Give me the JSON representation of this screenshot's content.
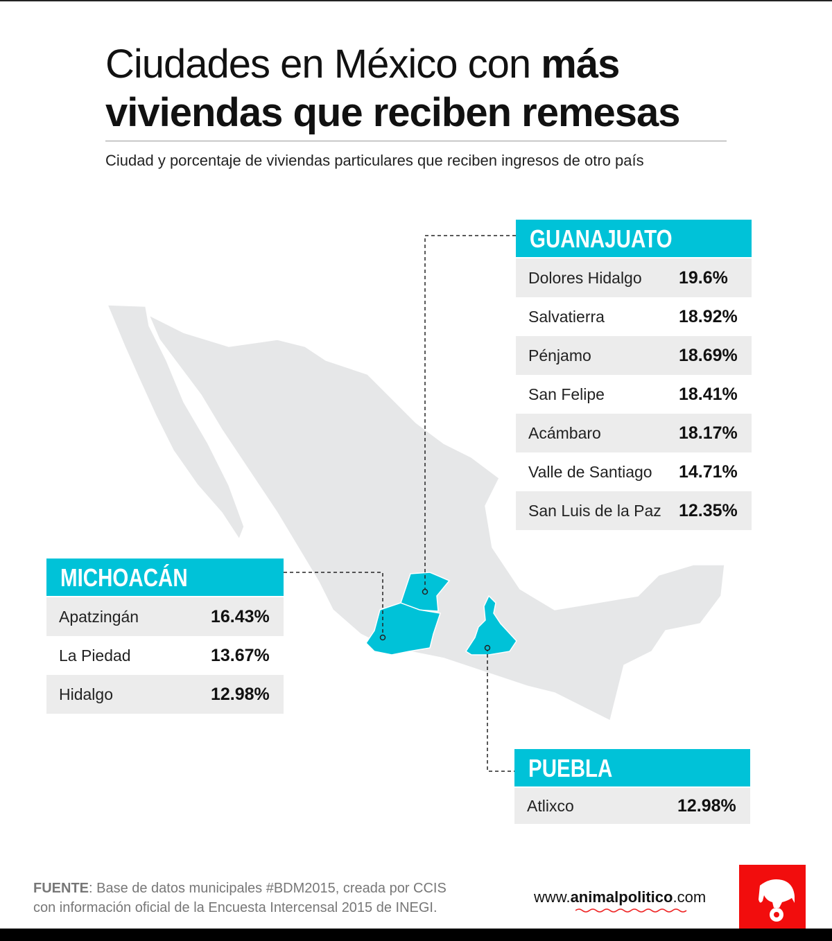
{
  "title": {
    "regular": "Ciudades en México con ",
    "bold1": "más",
    "bold2": "viviendas que reciben remesas"
  },
  "subtitle": "Ciudad y porcentaje de viviendas particulares que reciben ingresos de otro país",
  "colors": {
    "accent": "#00c2d8",
    "map": "#e6e7e8",
    "row_alt": "#ececec",
    "logo": "#f20d0d"
  },
  "states": [
    {
      "name": "GUANAJUATO",
      "cities": [
        {
          "city": "Dolores Hidalgo",
          "pct": "19.6%"
        },
        {
          "city": "Salvatierra",
          "pct": "18.92%"
        },
        {
          "city": "Pénjamo",
          "pct": "18.69%"
        },
        {
          "city": "San Felipe",
          "pct": "18.41%"
        },
        {
          "city": "Acámbaro",
          "pct": "18.17%"
        },
        {
          "city": "Valle de Santiago",
          "pct": "14.71%"
        },
        {
          "city": "San Luis de la Paz",
          "pct": "12.35%"
        }
      ]
    },
    {
      "name": "MICHOACÁN",
      "cities": [
        {
          "city": "Apatzingán",
          "pct": "16.43%"
        },
        {
          "city": "La Piedad",
          "pct": "13.67%"
        },
        {
          "city": "Hidalgo",
          "pct": "12.98%"
        }
      ]
    },
    {
      "name": "PUEBLA",
      "cities": [
        {
          "city": "Atlixco",
          "pct": "12.98%"
        }
      ]
    }
  ],
  "footer": {
    "label": "FUENTE",
    "text1": ": Base de datos municipales #BDM2015, creada por CCIS",
    "text2": "con información oficial de la Encuesta Intercensal 2015 de INEGI.",
    "web_pre": "www.",
    "web_bold": "animalpolitico",
    "web_post": ".com",
    "logo_text": "RDIA|M"
  }
}
